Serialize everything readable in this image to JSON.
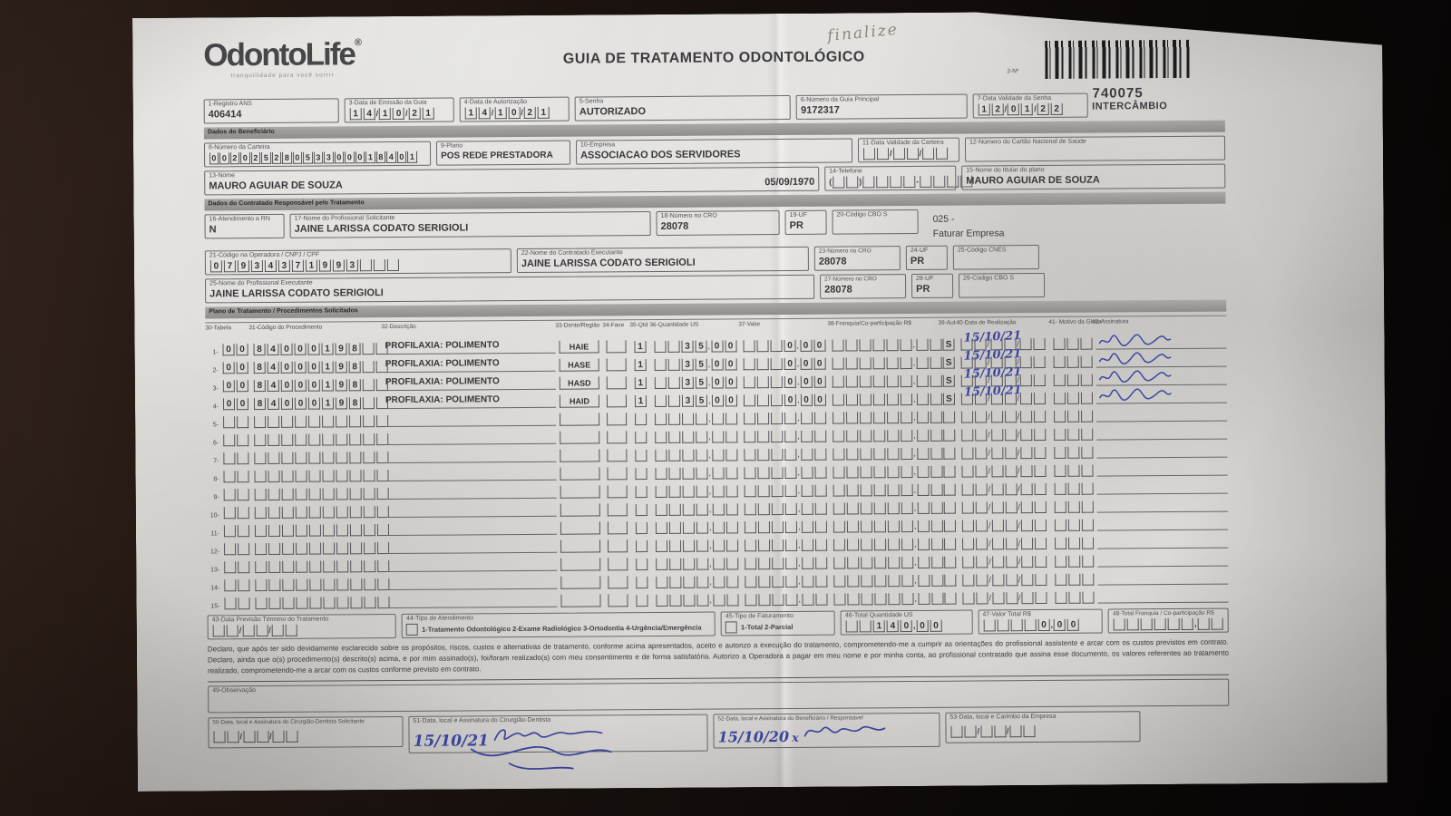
{
  "colors": {
    "ink_blue": "#3d47a0",
    "pencil": "#8d8780",
    "paper": "#dcdad7",
    "background": "#17100d",
    "accent_dark": "#3c3c40"
  },
  "header": {
    "handwritten_note": "finalize",
    "logo_text": "OdontoLife",
    "logo_reg": "®",
    "tagline": "tranquilidade para você sorrir",
    "title": "GUIA DE TRATAMENTO ODONTOLÓGICO",
    "number_label": "2-Nº",
    "code": "740075",
    "code_sub": "INTERCÂMBIO"
  },
  "sections": {
    "beneficiario": "Dados do Beneficiário",
    "contratado": "Dados do Contratado Responsável pelo Tratamento",
    "plano": "Plano de Tratamento / Procedimentos Solicitados"
  },
  "fields": {
    "f1": {
      "label": "1-Registro ANS",
      "value": "406414"
    },
    "f3": {
      "label": "3-Data de Emissão da Guia",
      "value": "14/10/21"
    },
    "f4": {
      "label": "4-Data de Autorização",
      "value": "14/10/21"
    },
    "f5": {
      "label": "5-Senha",
      "value": "AUTORIZADO"
    },
    "f6": {
      "label": "6-Número da Guia Principal",
      "value": "9172317"
    },
    "f7": {
      "label": "7-Data Validade da Senha",
      "value": "12/01/22"
    },
    "f8": {
      "label": "8-Número da Carteira",
      "value": "00202528053300018401"
    },
    "f9": {
      "label": "9-Plano",
      "value": "POS REDE PRESTADORA"
    },
    "f10": {
      "label": "10-Empresa",
      "value": "ASSOCIACAO DOS SERVIDORES"
    },
    "f11": {
      "label": "11-Data Validade da Carteira",
      "value": "  /  /  "
    },
    "f12": {
      "label": "12-Número do Cartão Nacional de Saúde",
      "value": ""
    },
    "f13": {
      "label": "13-Nome",
      "value": "MAURO AGUIAR DE SOUZA",
      "extra": "05/09/1970"
    },
    "f14": {
      "label": "14-Telefone",
      "value": "(  )    -    "
    },
    "f15": {
      "label": "15-Nome do titular do plano",
      "value": "MAURO AGUIAR DE SOUZA"
    },
    "f16": {
      "label": "16-Atendimento a RN",
      "value": "N"
    },
    "f17": {
      "label": "17-Nome do Profissional Solicitante",
      "value": "JAINE LARISSA CODATO SERIGIOLI"
    },
    "f18": {
      "label": "18-Número no CRO",
      "value": "28078"
    },
    "f19": {
      "label": "19-UF",
      "value": "PR"
    },
    "f20": {
      "label": "20-Código CBO S",
      "value": ""
    },
    "note_025_line1": "025 -",
    "note_025_line2": "Faturar Empresa",
    "f21": {
      "label": "21-Código na Operadora / CNPJ / CPF",
      "value": "07934371993   "
    },
    "f22": {
      "label": "22-Nome do Contratado Executante",
      "value": "JAINE LARISSA CODATO SERIGIOLI"
    },
    "f23": {
      "label": "23-Número no CRO",
      "value": "28078"
    },
    "f24": {
      "label": "24-UF",
      "value": "PR"
    },
    "f25cnes": {
      "label": "25-Código CNES",
      "value": ""
    },
    "f25": {
      "label": "25-Nome do Profissional Executante",
      "value": "JAINE LARISSA CODATO SERIGIOLI"
    },
    "f27": {
      "label": "27-Número no CRO",
      "value": "28078"
    },
    "f28": {
      "label": "28-UF",
      "value": "PR"
    },
    "f29": {
      "label": "29-Código CBO S",
      "value": ""
    },
    "f43": {
      "label": "43-Data Previsão Término do Tratamento",
      "value": "  /  /  "
    },
    "f44": {
      "label": "44-Tipo de Atendimento",
      "options": "1-Tratamento Odontológico  2-Exame Radiológico  3-Ortodontia  4-Urgência/Emergência"
    },
    "f45": {
      "label": "45-Tipo de Faturamento",
      "options": "1-Total  2-Parcial"
    },
    "f46": {
      "label": "46-Total Quantidade US",
      "value": "  140,00"
    },
    "f47": {
      "label": "47-Valor Total R$",
      "value": "    0,00"
    },
    "f48": {
      "label": "48-Total Franquia / Co-participação R$",
      "value": "      ,  "
    },
    "f49": {
      "label": "49-Observação"
    },
    "f50": {
      "label": "50-Data, local e Assinatura do Cirurgião-Dentista Solicitante",
      "value": "  /  /  "
    },
    "f51": {
      "label": "51-Data, local e Assinatura do Cirurgião-Dentista",
      "handwriting": "15/10/21"
    },
    "f52": {
      "label": "52-Data, local e Assinatura do Beneficiário / Responsável",
      "handwriting": "15/10/20",
      "handwriting_x": "x"
    },
    "f53": {
      "label": "53-Data, local e Carimbo da Empresa",
      "value": "  /  /  "
    }
  },
  "declaration": "Declaro, que após ter sido devidamente esclarecido sobre os propósitos, riscos, custos e alternativas de tratamento, conforme acima apresentados, aceito e autorizo a execução do tratamento, comprometendo-me a cumprir as orientações do profissional assistente e arcar com os custos previstos em contrato. Declaro, ainda que o(s) procedimento(s) descrito(s) acima, e por mim assinado(s), foi/foram realizado(s) com meu consentimento e de forma satisfatória. Autorizo a Operadora a pagar em meu nome e por minha conta, ao profissional contratado que assina esse documento, os valores referentes ao tratamento realizado, comprometendo-me a arcar com os custos conforme previsto em contrato.",
  "table": {
    "headers": [
      "30-Tabela",
      "31-Código do Procedimento",
      "32-Descrição",
      "33-Dente/Região",
      "34-Face",
      "35-Qtd",
      "36-Quantidade US",
      "37-Valor",
      "38-Franquia/Co-participação R$",
      "39-Aut",
      "40-Data de Realização",
      "41- Motivo da Glosa",
      "42-Assinatura"
    ],
    "empty_row_defaults": {
      "tabela": "  ",
      "codigo": "          ",
      "descricao": "",
      "dente": "",
      "face": " ",
      "qtd": " ",
      "qus": "    ,  ",
      "valor": "    ,  ",
      "franquia": "      ,  ",
      "aut": " ",
      "data": "  /  /  ",
      "hw": "",
      "glosa": "   ",
      "sig": false
    },
    "rows": [
      {
        "n": "1",
        "tabela": "00",
        "codigo": "84000198  ",
        "descricao": "PROFILAXIA: POLIMENTO",
        "dente": "HAIE",
        "qtd": "1",
        "qus": "  35,00",
        "valor": "   0,00",
        "aut": "S",
        "hw": "15/10/21",
        "sig": true
      },
      {
        "n": "2",
        "tabela": "00",
        "codigo": "84000198  ",
        "descricao": "PROFILAXIA: POLIMENTO",
        "dente": "HASE",
        "qtd": "1",
        "qus": "  35,00",
        "valor": "   0,00",
        "aut": "S",
        "hw": "15/10/21",
        "sig": true
      },
      {
        "n": "3",
        "tabela": "00",
        "codigo": "84000198  ",
        "descricao": "PROFILAXIA: POLIMENTO",
        "dente": "HASD",
        "qtd": "1",
        "qus": "  35,00",
        "valor": "   0,00",
        "aut": "S",
        "hw": "15/10/21",
        "sig": true
      },
      {
        "n": "4",
        "tabela": "00",
        "codigo": "84000198  ",
        "descricao": "PROFILAXIA: POLIMENTO",
        "dente": "HAID",
        "qtd": "1",
        "qus": "  35,00",
        "valor": "   0,00",
        "aut": "S",
        "hw": "15/10/21",
        "sig": true
      },
      {
        "n": "5"
      },
      {
        "n": "6"
      },
      {
        "n": "7"
      },
      {
        "n": "8"
      },
      {
        "n": "9"
      },
      {
        "n": "10"
      },
      {
        "n": "11"
      },
      {
        "n": "12"
      },
      {
        "n": "13"
      },
      {
        "n": "14"
      },
      {
        "n": "15"
      }
    ]
  }
}
